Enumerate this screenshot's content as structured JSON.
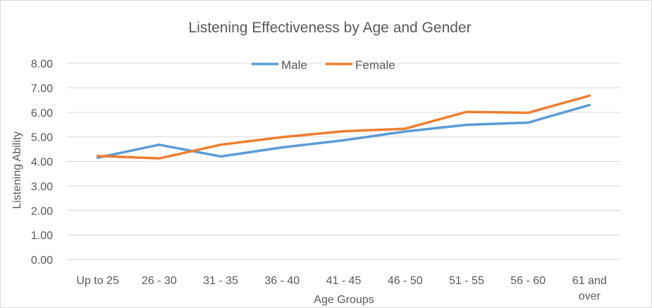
{
  "chart_data": {
    "type": "line",
    "title": "Listening Effectiveness by Age and Gender",
    "xlabel": "Age Groups",
    "ylabel": "Listening Ability",
    "categories": [
      "Up to 25",
      "26 - 30",
      "31 - 35",
      "36 - 40",
      "41 - 45",
      "46 - 50",
      "51 - 55",
      "56 - 60",
      "61 and over"
    ],
    "y_ticks": [
      "0.00",
      "1.00",
      "2.00",
      "3.00",
      "4.00",
      "5.00",
      "6.00",
      "7.00",
      "8.00"
    ],
    "ylim": [
      0,
      8
    ],
    "grid": true,
    "legend_position": "top",
    "series": [
      {
        "name": "Male",
        "color": "#5b9bd5",
        "values": [
          4.15,
          4.68,
          4.2,
          4.57,
          4.86,
          5.22,
          5.49,
          5.58,
          6.3
        ]
      },
      {
        "name": "Female",
        "color": "#ed7d31",
        "values": [
          4.22,
          4.12,
          4.68,
          4.99,
          5.23,
          5.33,
          6.02,
          5.98,
          6.68
        ]
      }
    ]
  }
}
